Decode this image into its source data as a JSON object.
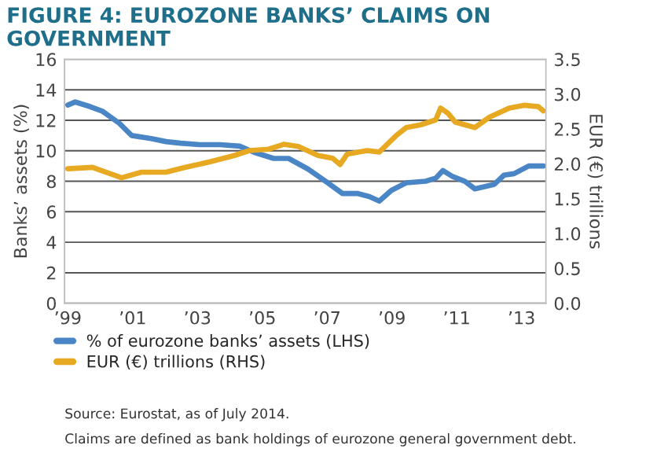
{
  "chart_data": {
    "type": "line",
    "title": "FIGURE 4: EUROZONE BANKS’ CLAIMS ON GOVERNMENT",
    "ylabel": "Banks’ assets (%)",
    "y2label": "EUR (€) trillions",
    "series": [
      {
        "name": "% of eurozone banks’ assets (LHS)",
        "color": "#4a86c5",
        "x": [
          1999.0,
          1999.23,
          1999.68,
          2000.06,
          2000.59,
          2000.97,
          2001.57,
          2002.03,
          2002.48,
          2003.08,
          2003.69,
          2004.3,
          2004.75,
          2005.35,
          2005.81,
          2006.41,
          2007.02,
          2007.47,
          2007.93,
          2008.3,
          2008.61,
          2008.98,
          2009.44,
          2010.04,
          2010.35,
          2010.57,
          2010.88,
          2011.25,
          2011.56,
          2012.16,
          2012.46,
          2012.77,
          2013.22,
          2013.67
        ],
        "values": [
          13.0,
          13.2,
          12.9,
          12.6,
          11.8,
          11.0,
          10.8,
          10.6,
          10.5,
          10.4,
          10.4,
          10.3,
          9.9,
          9.5,
          9.5,
          8.8,
          7.9,
          7.2,
          7.2,
          7.0,
          6.7,
          7.4,
          7.9,
          8.0,
          8.2,
          8.7,
          8.3,
          8.0,
          7.5,
          7.8,
          8.4,
          8.5,
          9.0,
          9.0
        ]
      },
      {
        "name": "EUR (€) trillions (RHS)",
        "color": "#e8a922",
        "axis": "y2",
        "x": [
          1999.0,
          1999.76,
          2000.66,
          2001.27,
          2002.03,
          2002.63,
          2003.39,
          2004.14,
          2004.6,
          2005.2,
          2005.66,
          2006.11,
          2006.72,
          2007.17,
          2007.4,
          2007.62,
          2008.23,
          2008.61,
          2009.14,
          2009.44,
          2009.89,
          2010.35,
          2010.5,
          2010.72,
          2010.95,
          2011.56,
          2012.01,
          2012.62,
          2013.07,
          2013.52,
          2013.67
        ],
        "values": [
          1.93,
          1.95,
          1.8,
          1.88,
          1.88,
          1.95,
          2.03,
          2.12,
          2.19,
          2.21,
          2.28,
          2.25,
          2.12,
          2.08,
          1.99,
          2.14,
          2.19,
          2.17,
          2.41,
          2.52,
          2.56,
          2.63,
          2.8,
          2.73,
          2.6,
          2.52,
          2.67,
          2.8,
          2.84,
          2.82,
          2.76
        ]
      }
    ],
    "xlim": [
      1998.9,
      2013.75
    ],
    "xticks": [
      {
        "value": 1999,
        "label": "’99"
      },
      {
        "value": 2001,
        "label": "’01"
      },
      {
        "value": 2003,
        "label": "’03"
      },
      {
        "value": 2005,
        "label": "’05"
      },
      {
        "value": 2007,
        "label": "’07"
      },
      {
        "value": 2009,
        "label": "’09"
      },
      {
        "value": 2011,
        "label": "’11"
      },
      {
        "value": 2013,
        "label": "’13"
      }
    ],
    "ylim": [
      0,
      16
    ],
    "yticks": [
      0,
      2,
      4,
      6,
      8,
      10,
      12,
      14,
      16
    ],
    "y2lim": [
      0,
      3.5
    ],
    "y2ticks": [
      {
        "value": 0,
        "label": "0.0"
      },
      {
        "value": 0.5,
        "label": "0.5"
      },
      {
        "value": 1,
        "label": "1.0"
      },
      {
        "value": 1.5,
        "label": "1.5"
      },
      {
        "value": 2,
        "label": "2.0"
      },
      {
        "value": 2.5,
        "label": "2.5"
      },
      {
        "value": 3,
        "label": "3.0"
      },
      {
        "value": 3.5,
        "label": "3.5"
      }
    ],
    "grid": "y",
    "legend": "bottom",
    "annotations": [
      "Source: Eurostat, as of July 2014.",
      "Claims are defined as bank holdings of eurozone general government debt."
    ]
  }
}
